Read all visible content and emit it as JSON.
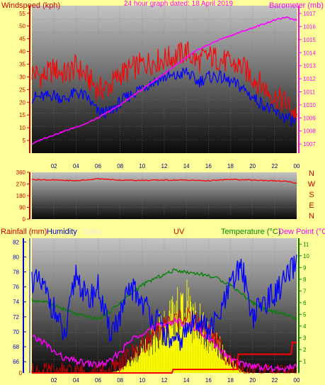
{
  "top_panel": {
    "left_label": "Windspeed (kph)",
    "center_title": "24 hour graph dated: 18 April 2019",
    "right_label": "Barometer (mb)"
  },
  "dir_panel": {
    "compass": [
      "N",
      "W",
      "S",
      "E",
      "N"
    ]
  },
  "bottom_panel": {
    "labels": {
      "rainfall": "Rainfall (mm)",
      "humidity": "Humidity",
      "solar": "Solar",
      "uv": "UV",
      "temperature": "Temperature (°C)",
      "dew_point": "Dew Point (°C)"
    }
  },
  "x_ticks": [
    "02",
    "04",
    "06",
    "08",
    "10",
    "12",
    "14",
    "16",
    "18",
    "20",
    "22",
    "00"
  ],
  "colors": {
    "page_bg": "#FFFF99",
    "windspeed": "#FF0000",
    "wind_avg": "#0000FF",
    "barometer": "#FF00FF",
    "direction": "#FF0000",
    "humidity": "#0000FF",
    "temperature": "#008000",
    "dew_point": "#FF00FF",
    "solar": "#FFFF00",
    "uv": "#CC0000",
    "rain": "#FF0000",
    "title": "#FF00FF",
    "axis_left": "#CC0000",
    "axis_right": "#FF00FF",
    "axis_blue": "#0000CC",
    "axis_green": "#008000"
  },
  "chart_data": [
    {
      "type": "line",
      "name": "top",
      "x_unit": "hour",
      "x_range": [
        0,
        24
      ],
      "left_axis": {
        "label": "Windspeed (kph)",
        "ticks": [
          5,
          10,
          15,
          20,
          25,
          30,
          35,
          40,
          45,
          50,
          55
        ],
        "range": [
          0,
          58
        ]
      },
      "right_axis": {
        "label": "Barometer (mb)",
        "ticks": [
          1007,
          1008,
          1009,
          1010,
          1011,
          1012,
          1013,
          1014,
          1015,
          1016,
          1017
        ],
        "range": [
          1006.3,
          1017.6
        ]
      },
      "series": [
        {
          "name": "gust",
          "axis": "left",
          "x": [
            0,
            1,
            2,
            3,
            4,
            5,
            6,
            7,
            8,
            9,
            10,
            11,
            12,
            13,
            14,
            15,
            16,
            17,
            18,
            19,
            20,
            21,
            22,
            23,
            24
          ],
          "y": [
            32,
            30,
            33,
            31,
            34,
            30,
            25,
            26,
            31,
            33,
            35,
            36,
            37,
            38,
            40,
            36,
            38,
            37,
            35,
            34,
            30,
            26,
            22,
            20,
            15
          ]
        },
        {
          "name": "average",
          "axis": "left",
          "x": [
            0,
            1,
            2,
            3,
            4,
            5,
            6,
            7,
            8,
            9,
            10,
            11,
            12,
            13,
            14,
            15,
            16,
            17,
            18,
            19,
            20,
            21,
            22,
            23,
            24
          ],
          "y": [
            22,
            22,
            23,
            21,
            24,
            22,
            16,
            16,
            20,
            23,
            26,
            28,
            30,
            30,
            32,
            28,
            30,
            30,
            28,
            26,
            22,
            19,
            16,
            14,
            12
          ]
        },
        {
          "name": "Barometer",
          "axis": "right",
          "x": [
            0,
            1,
            2,
            3,
            4,
            5,
            6,
            7,
            8,
            9,
            10,
            11,
            12,
            13,
            14,
            15,
            16,
            17,
            18,
            19,
            20,
            21,
            22,
            23,
            24
          ],
          "y": [
            1007.0,
            1007.4,
            1007.7,
            1008.0,
            1008.3,
            1008.6,
            1009.0,
            1009.5,
            1010.0,
            1010.6,
            1011.2,
            1011.8,
            1012.4,
            1013.0,
            1013.6,
            1014.2,
            1014.6,
            1015.0,
            1015.3,
            1015.6,
            1015.9,
            1016.2,
            1016.5,
            1016.7,
            1016.5
          ]
        }
      ]
    },
    {
      "type": "line",
      "name": "direction",
      "x_range": [
        0,
        24
      ],
      "left_axis": {
        "ticks": [
          0,
          90,
          180,
          270,
          360
        ],
        "range": [
          0,
          360
        ]
      },
      "right_labels": [
        "N",
        "W",
        "S",
        "E",
        "N"
      ],
      "series": [
        {
          "name": "direction",
          "x": [
            0,
            2,
            4,
            6,
            8,
            10,
            12,
            14,
            16,
            18,
            20,
            22,
            23,
            24
          ],
          "y": [
            305,
            300,
            295,
            310,
            300,
            298,
            300,
            300,
            295,
            305,
            300,
            295,
            290,
            275
          ]
        }
      ]
    },
    {
      "type": "line",
      "name": "bottom",
      "x_range": [
        0,
        24
      ],
      "left_axes": [
        {
          "label": "Rainfall (mm)",
          "ticks": [
            0
          ],
          "color": "red"
        },
        {
          "label": "Humidity",
          "ticks": [
            66,
            68,
            70,
            72,
            74,
            76,
            78,
            80,
            82
          ],
          "range": [
            64.5,
            82.5
          ]
        }
      ],
      "right_axis": {
        "label": "Temperature (°C)",
        "ticks": [
          1,
          2,
          3,
          4,
          5,
          6,
          7,
          8,
          9,
          10,
          11
        ],
        "range": [
          0,
          11.5
        ]
      },
      "series": [
        {
          "name": "Humidity",
          "x": [
            0,
            1,
            2,
            3,
            4,
            5,
            6,
            7,
            8,
            9,
            10,
            11,
            12,
            13,
            14,
            15,
            16,
            17,
            18,
            19,
            20,
            21,
            22,
            23,
            24
          ],
          "y": [
            77,
            76,
            73,
            69,
            78,
            74,
            76,
            70,
            72,
            76,
            74,
            72,
            70,
            68,
            70,
            72,
            70,
            72,
            76,
            79,
            72,
            74,
            75,
            77,
            79
          ]
        },
        {
          "name": "Temperature (°C)",
          "x": [
            0,
            1,
            2,
            3,
            4,
            5,
            6,
            7,
            8,
            9,
            10,
            11,
            12,
            13,
            14,
            15,
            16,
            17,
            18,
            19,
            20,
            21,
            22,
            23,
            24
          ],
          "y": [
            6.2,
            6.1,
            5.8,
            5.4,
            5.0,
            4.8,
            4.6,
            5.2,
            6.0,
            6.8,
            7.5,
            8.0,
            8.4,
            8.8,
            8.6,
            8.5,
            8.3,
            8.0,
            7.5,
            6.8,
            6.0,
            5.5,
            5.2,
            5.0,
            4.6
          ]
        },
        {
          "name": "Dew Point (°C)",
          "x": [
            0,
            1,
            2,
            3,
            4,
            5,
            6,
            7,
            8,
            9,
            10,
            11,
            12,
            13,
            14,
            15,
            16,
            17,
            18,
            19,
            20,
            21,
            22,
            23,
            24
          ],
          "y": [
            3.0,
            2.7,
            1.8,
            1.2,
            1.0,
            0.8,
            0.7,
            0.9,
            1.8,
            2.8,
            3.5,
            3.8,
            4.2,
            4.4,
            4.2,
            3.8,
            3.0,
            2.0,
            1.2,
            0.8,
            0.6,
            0.5,
            0.3,
            0.4,
            0.6
          ]
        },
        {
          "name": "Solar",
          "x": [
            0,
            7,
            8,
            9,
            10,
            11,
            12,
            13,
            14,
            15,
            16,
            17,
            18,
            19,
            20,
            24
          ],
          "y": [
            0,
            0,
            0.4,
            1.6,
            3.0,
            4.4,
            6.0,
            7.2,
            8.2,
            6.4,
            4.6,
            3.4,
            1.4,
            0.2,
            0,
            0
          ]
        },
        {
          "name": "UV",
          "x": [
            0,
            7,
            8,
            9,
            10,
            11,
            12,
            13,
            14,
            15,
            16,
            17,
            18,
            19,
            24
          ],
          "y": [
            0,
            0,
            0.8,
            1.6,
            2.4,
            3.2,
            4.0,
            4.6,
            4.8,
            4.2,
            3.4,
            2.4,
            1.0,
            0,
            0
          ]
        },
        {
          "name": "Rainfall (mm)",
          "x": [
            0,
            12.7,
            12.8,
            18.6,
            18.7,
            23.5,
            23.6,
            24
          ],
          "y": [
            0,
            0,
            0.3,
            0.3,
            1.6,
            1.6,
            2.6,
            2.6
          ]
        }
      ]
    }
  ]
}
